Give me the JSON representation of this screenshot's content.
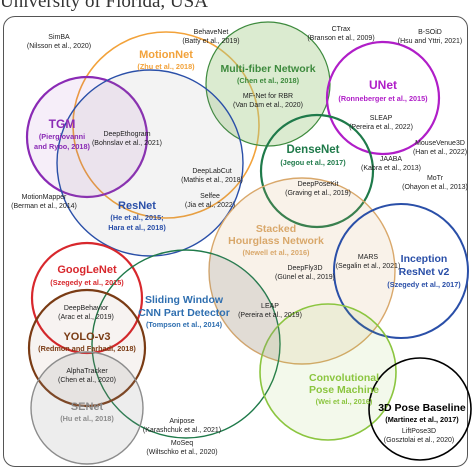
{
  "caption": "University of Florida, USA",
  "colors": {
    "orange": "#f2a23a",
    "green_dark": "#3d8a3d",
    "purple": "#8a2ab5",
    "magenta": "#b01ec8",
    "teal": "#1f7a4a",
    "tan": "#d9a86b",
    "blue": "#2a4fa8",
    "red": "#d8282d",
    "brown": "#7a3b14",
    "gray": "#8c8c8c",
    "light_green": "#8bc53f",
    "black": "#000000",
    "multifiber_fill": "#a9cf8e",
    "slidingwindow": "#2f6fb0"
  },
  "networks": {
    "motionnet": {
      "name": "MotionNet",
      "cite": "(Zhu et al., 2018)"
    },
    "multifiber": {
      "name1": "Multi-fiber Network",
      "cite": "(Chen et al., 2018)"
    },
    "unet": {
      "name": "UNet",
      "cite": "(Ronneberger et al., 2015)"
    },
    "tgm": {
      "name": "TGM",
      "cite1": "(Piergiovanni",
      "cite2": "and Ryoo, 2018)"
    },
    "resnet": {
      "name": "ResNet",
      "cite1": "(He et al., 2015;",
      "cite2": "Hara et al., 2018)"
    },
    "densenet": {
      "name": "DenseNet",
      "cite": "(Jegou et al., 2017)"
    },
    "hourglass": {
      "name1": "Stacked",
      "name2": "Hourglass Network",
      "cite": "(Newell et al., 2016)"
    },
    "inception": {
      "name1": "Inception",
      "name2": "ResNet v2",
      "cite": "(Szegedy et al., 2017)"
    },
    "googlenet": {
      "name": "GoogLeNet",
      "cite": "(Szegedy et al., 2015)"
    },
    "sliding": {
      "name1": "Sliding Window",
      "name2": "CNN Part Detector",
      "cite": "(Tompson et al., 2014)"
    },
    "yolo": {
      "name": "YOLO-v3",
      "cite": "(Redmon and Farhadi, 2018)"
    },
    "senet": {
      "name": "SENet",
      "cite": "(Hu et al., 2018)"
    },
    "cpm": {
      "name1": "Convolutional",
      "name2": "Pose Machine",
      "cite": "(Wei et al., 2016)"
    },
    "pose3d": {
      "name": "3D Pose Baseline",
      "cite": "(Martinez et al., 2017)"
    }
  },
  "tools": [
    {
      "name": "SimBA",
      "cite": "(Nilsson et al., 2020)"
    },
    {
      "name": "BehaveNet",
      "cite": "(Batty et al., 2019)"
    },
    {
      "name": "CTrax",
      "cite": "(Branson et al., 2009)"
    },
    {
      "name": "B-SOiD",
      "cite": "(Hsu and Yttri, 2021)"
    },
    {
      "name": "MF-Net for RBR",
      "cite": "(Van Dam et al., 2020)"
    },
    {
      "name": "SLEAP",
      "cite": "(Pereira et al., 2022)"
    },
    {
      "name": "MouseVenue3D",
      "cite": "(Han et al., 2022)"
    },
    {
      "name": "DeepEthogram",
      "cite": "(Bohnslav et al., 2021)"
    },
    {
      "name": "DeepLabCut",
      "cite": "(Mathis et al., 2018)"
    },
    {
      "name": "JAABA",
      "cite": "(Kabra et al., 2013)"
    },
    {
      "name": "MoTr",
      "cite": "(Ohayon et al., 2013)"
    },
    {
      "name": "DeepPoseKit",
      "cite": "(Graving et al., 2019)"
    },
    {
      "name": "Selfee",
      "cite": "(Jia et al., 2022)"
    },
    {
      "name": "MotionMapper",
      "cite": "(Berman et al., 2014)"
    },
    {
      "name": "MARS",
      "cite": "(Segalin et al., 2021)"
    },
    {
      "name": "DeepFly3D",
      "cite": "(Günel et al., 2019)"
    },
    {
      "name": "DeepBehavior",
      "cite": "(Arac et al., 2019)"
    },
    {
      "name": "LEAP",
      "cite": "(Pereira et al., 2019)"
    },
    {
      "name": "AlphaTracker",
      "cite": "(Chen et al., 2020)"
    },
    {
      "name": "Anipose",
      "cite": "(Karashchuk et al., 2021)"
    },
    {
      "name": "MoSeq",
      "cite": "(Wiltschko et al., 2020)"
    },
    {
      "name": "LiftPose3D",
      "cite": "(Gosztolai et al., 2020)"
    }
  ]
}
